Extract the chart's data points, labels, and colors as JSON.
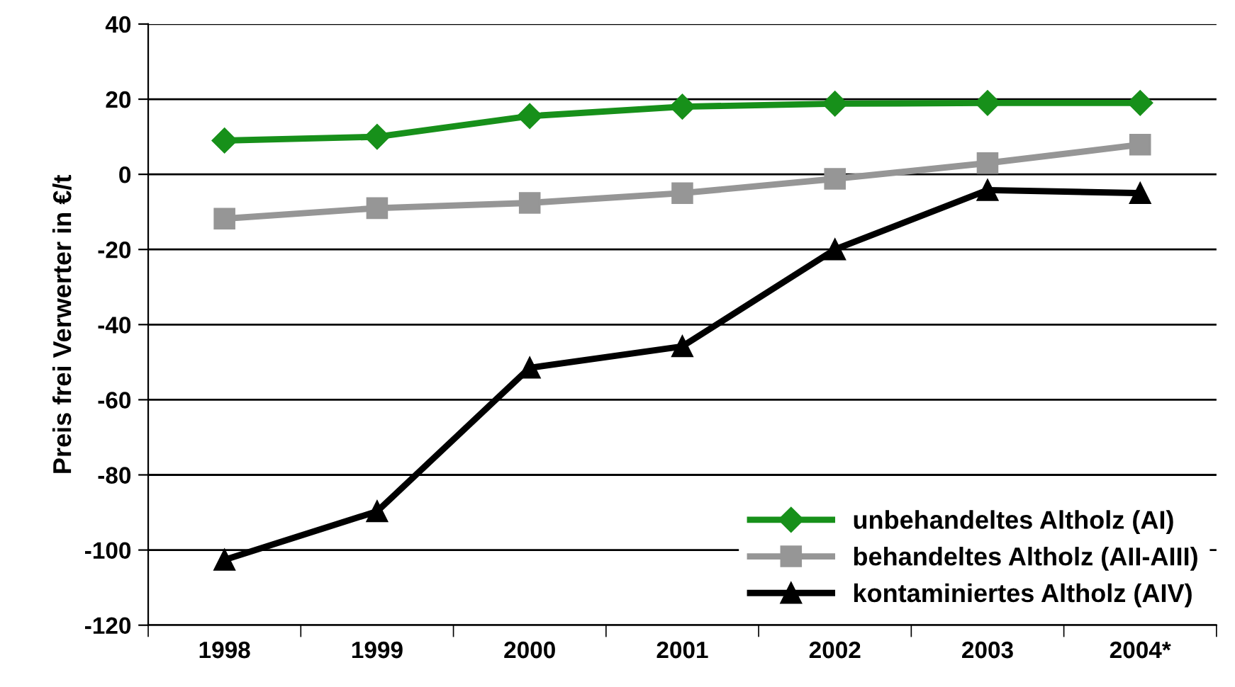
{
  "chart_data": {
    "type": "line",
    "ylabel": "Preis frei Verwerter in €/t",
    "categories": [
      "1998",
      "1999",
      "2000",
      "2001",
      "2002",
      "2003",
      "2004*"
    ],
    "series": [
      {
        "name": "unbehandeltes Altholz (AI)",
        "color": "#17901a",
        "marker": "diamond",
        "values": [
          9,
          10,
          15.5,
          18,
          18.8,
          19,
          19
        ]
      },
      {
        "name": "behandeltes Altholz (AII-AIII)",
        "color": "#969696",
        "marker": "square",
        "values": [
          -11.8,
          -9,
          -7.6,
          -5,
          -1.2,
          3,
          7.9
        ]
      },
      {
        "name": "kontaminiertes Altholz (AIV)",
        "color": "#000000",
        "marker": "triangle",
        "values": [
          -102.6,
          -89.7,
          -51.5,
          -45.8,
          -20,
          -4.2,
          -5
        ]
      }
    ],
    "ylim": [
      -120,
      40
    ],
    "yticks": [
      -120,
      -100,
      -80,
      -60,
      -40,
      -20,
      0,
      20,
      40
    ],
    "grid": "y",
    "legend": "bottom right",
    "line_style": "solid"
  }
}
